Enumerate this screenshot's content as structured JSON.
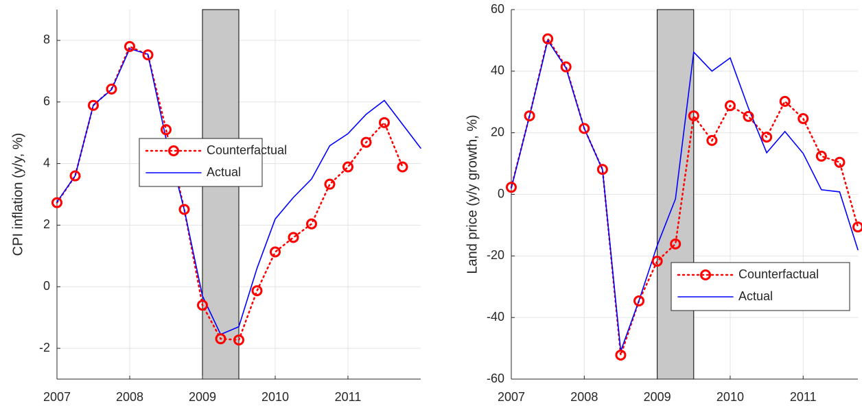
{
  "chart_data": [
    {
      "type": "line",
      "ylabel": "CPI inflation (y/y, %)",
      "xlim": [
        2007,
        2012
      ],
      "xticks": [
        2007,
        2008,
        2009,
        2010,
        2011
      ],
      "ylim": [
        -3,
        9
      ],
      "yticks": [
        -2,
        0,
        2,
        4,
        6,
        8
      ],
      "grid": true,
      "shaded": {
        "x": [
          2009,
          2009.5
        ],
        "color": "#c8c8c8"
      },
      "legend": "center",
      "series": [
        {
          "name": "Counterfactual",
          "color": "#ff0000",
          "style": "dotted-circle",
          "x": [
            2007,
            2007.25,
            2007.5,
            2007.75,
            2008,
            2008.25,
            2008.5,
            2008.75,
            2009,
            2009.25,
            2009.5,
            2009.75,
            2010,
            2010.25,
            2010.5,
            2010.75,
            2011,
            2011.25,
            2011.5,
            2011.75
          ],
          "values": [
            2.73,
            3.6,
            5.89,
            6.42,
            7.8,
            7.53,
            5.1,
            2.51,
            -0.6,
            -1.69,
            -1.73,
            -0.13,
            1.13,
            1.6,
            2.04,
            3.33,
            3.89,
            4.69,
            5.33,
            3.89
          ]
        },
        {
          "name": "Actual",
          "color": "#0000ff",
          "style": "solid",
          "x": [
            2007,
            2007.25,
            2007.5,
            2007.75,
            2008,
            2008.25,
            2008.5,
            2008.75,
            2009,
            2009.25,
            2009.5,
            2009.75,
            2010,
            2010.25,
            2010.5,
            2010.75,
            2011,
            2011.25,
            2011.5,
            2012
          ],
          "values": [
            2.75,
            3.6,
            5.9,
            6.4,
            7.73,
            7.55,
            4.8,
            2.5,
            -0.3,
            -1.55,
            -1.3,
            0.6,
            2.2,
            2.9,
            3.5,
            4.58,
            4.97,
            5.6,
            6.05,
            4.5
          ]
        }
      ]
    },
    {
      "type": "line",
      "ylabel": "Land price (y/y growth, %)",
      "xlim": [
        2007,
        2011.75
      ],
      "xticks": [
        2007,
        2008,
        2009,
        2010,
        2011
      ],
      "ylim": [
        -60,
        60
      ],
      "yticks": [
        -60,
        -40,
        -20,
        0,
        20,
        40,
        60
      ],
      "grid": true,
      "shaded": {
        "x": [
          2009,
          2009.5
        ],
        "color": "#c8c8c8"
      },
      "legend": "southeast",
      "series": [
        {
          "name": "Counterfactual",
          "color": "#ff0000",
          "style": "dotted-circle",
          "x": [
            2007,
            2007.25,
            2007.5,
            2007.75,
            2008,
            2008.25,
            2008.5,
            2008.75,
            2009,
            2009.25,
            2009.5,
            2009.75,
            2010,
            2010.25,
            2010.5,
            2010.75,
            2011,
            2011.25,
            2011.5,
            2011.75
          ],
          "values": [
            2.3,
            25.5,
            50.5,
            41.4,
            21.4,
            8.1,
            -52.2,
            -34.6,
            -21.7,
            -16.1,
            25.5,
            17.5,
            28.8,
            25.3,
            18.6,
            30.2,
            24.6,
            12.4,
            10.4,
            -10.6
          ]
        },
        {
          "name": "Actual",
          "color": "#0000ff",
          "style": "solid",
          "x": [
            2007,
            2007.25,
            2007.5,
            2007.75,
            2008,
            2008.25,
            2008.5,
            2008.75,
            2009,
            2009.25,
            2009.5,
            2009.75,
            2010,
            2010.25,
            2010.5,
            2010.75,
            2011,
            2011.25,
            2011.5,
            2011.75
          ],
          "values": [
            2,
            25.5,
            50,
            41,
            21.4,
            8,
            -50.9,
            -34.5,
            -16.6,
            -1.5,
            46.2,
            40,
            44.3,
            28,
            13.5,
            20.4,
            13.3,
            1.5,
            0.8,
            -18
          ]
        }
      ]
    }
  ]
}
